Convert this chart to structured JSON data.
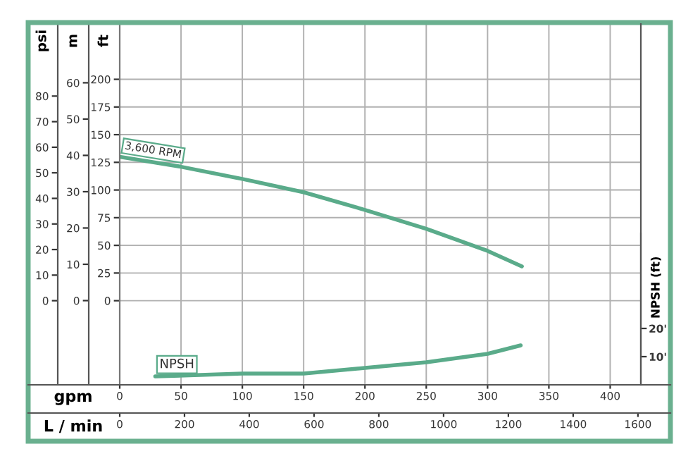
{
  "chart_data": [
    {
      "type": "line",
      "series": [
        {
          "name": "3,600 RPM",
          "color": "#5aab8a",
          "x": [
            0,
            50,
            100,
            150,
            200,
            250,
            300,
            328
          ],
          "values": [
            130,
            121,
            110,
            98,
            82,
            65,
            45,
            31
          ]
        }
      ],
      "xlabel": "gpm",
      "x2label": "L / min",
      "ylabel": "ft",
      "y2label": "m",
      "y3label": "psi",
      "xlim": [
        0,
        425
      ],
      "xticks": [
        0,
        50,
        100,
        150,
        200,
        250,
        300,
        350,
        400
      ],
      "x2lim": [
        0,
        1609
      ],
      "x2ticks": [
        0,
        200,
        400,
        600,
        800,
        1000,
        1200,
        1400,
        1600
      ],
      "ylim": [
        -76,
        250
      ],
      "yticks": [
        0,
        25,
        50,
        75,
        100,
        125,
        150,
        175,
        200
      ],
      "y2lim": [
        -23.2,
        76.2
      ],
      "y2ticks": [
        0,
        10,
        20,
        30,
        40,
        50,
        60
      ],
      "y3lim": [
        -32.9,
        108.2
      ],
      "y3ticks": [
        0,
        10,
        20,
        30,
        40,
        50,
        60,
        70,
        80
      ],
      "grid": true,
      "legend": false,
      "marker": "none",
      "line_style": "solid"
    },
    {
      "type": "line",
      "series": [
        {
          "name": "NPSH",
          "color": "#5aab8a",
          "x": [
            29,
            100,
            150,
            200,
            250,
            300,
            327
          ],
          "values": [
            3,
            4,
            4,
            6,
            8,
            11,
            14
          ]
        }
      ],
      "ylabel": "NPSH (ft)",
      "xlim": [
        0,
        425
      ],
      "ylim": [
        0,
        128
      ],
      "yticks": [
        {
          "value": 10,
          "label": "10'"
        },
        {
          "value": 20,
          "label": "20'"
        }
      ],
      "tick_labels": "y",
      "legend": false,
      "marker": "none",
      "line_style": "solid"
    }
  ]
}
